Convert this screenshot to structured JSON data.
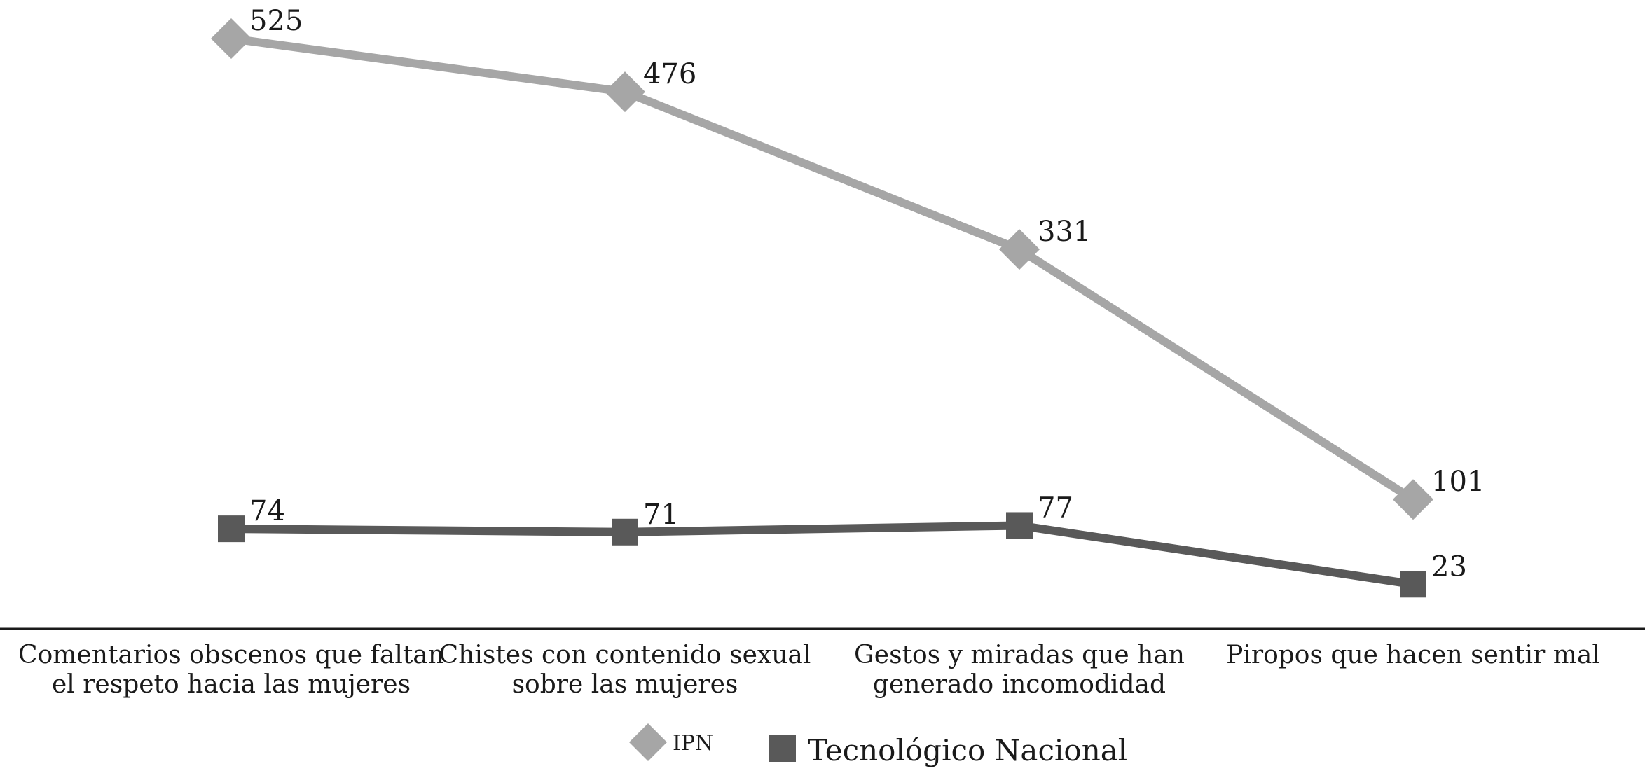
{
  "chart_data": {
    "type": "line",
    "categories": [
      [
        "Comentarios obscenos que faltan",
        "el respeto hacia las mujeres"
      ],
      [
        "Chistes con contenido sexual",
        "sobre las mujeres"
      ],
      [
        "Gestos y miradas que han",
        "generado incomodidad"
      ],
      [
        "Piropos que hacen sentir mal"
      ]
    ],
    "series": [
      {
        "name": "IPN",
        "values": [
          525,
          476,
          331,
          101
        ],
        "color": "#a6a6a6",
        "marker": "diamond"
      },
      {
        "name": "Tecnológico Nacional",
        "values": [
          74,
          71,
          77,
          23
        ],
        "color": "#595959",
        "marker": "square"
      }
    ],
    "ylim": [
      0,
      525
    ],
    "grid": false,
    "legend_position": "bottom-center"
  }
}
